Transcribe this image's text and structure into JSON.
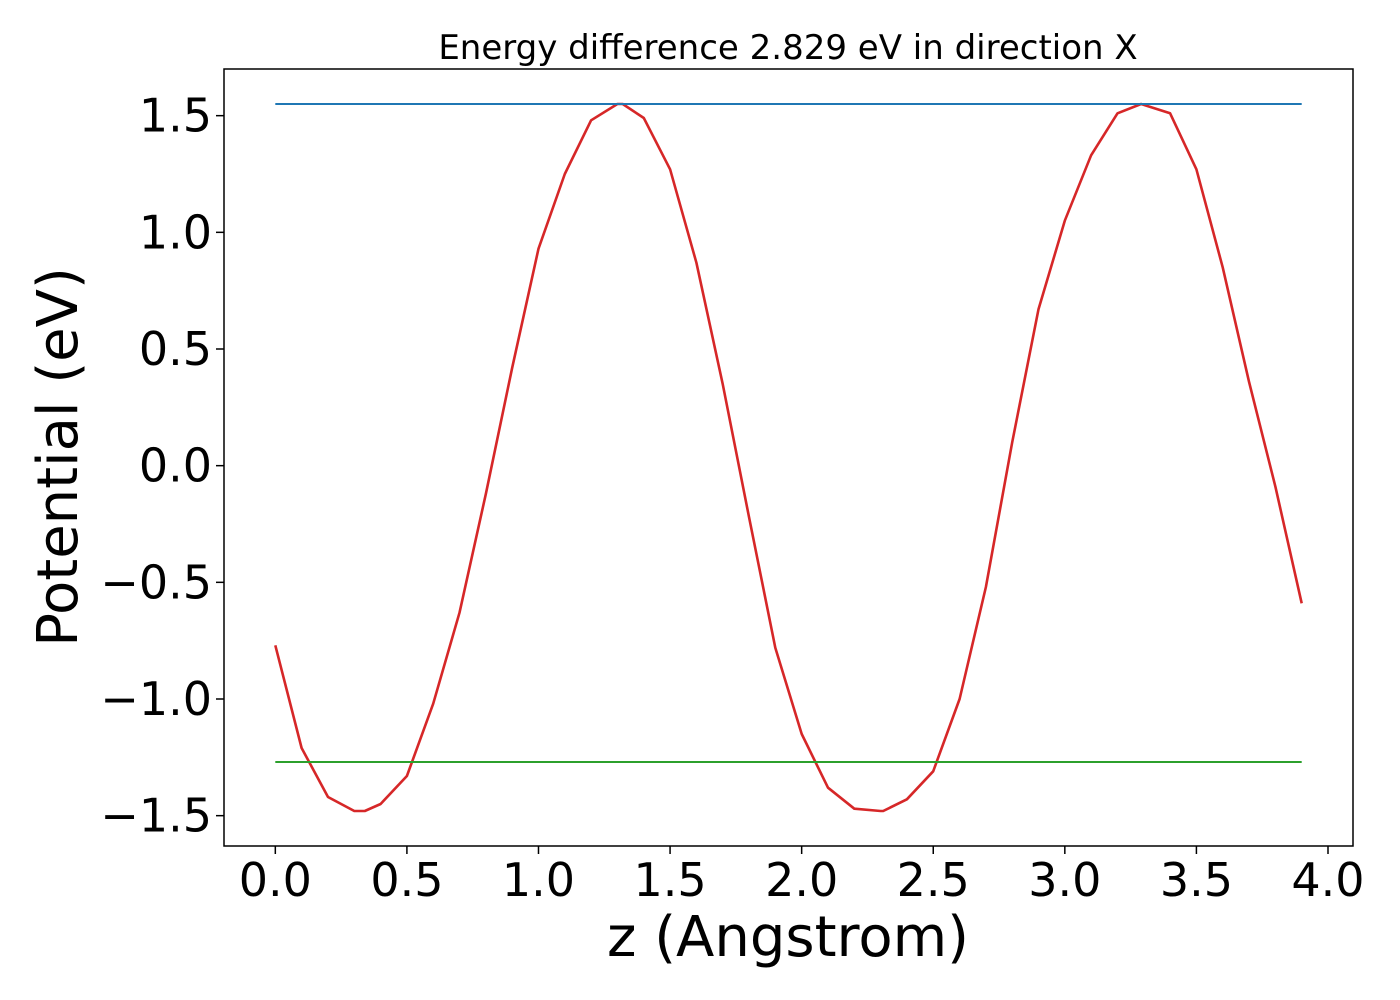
{
  "chart_data": {
    "type": "line",
    "title": "Energy difference 2.829 eV in direction X",
    "xlabel": "z (Angstrom)",
    "ylabel": "Potential (eV)",
    "xlim": [
      -0.195,
      4.095
    ],
    "ylim": [
      -1.63,
      1.7
    ],
    "xticks": [
      0.0,
      0.5,
      1.0,
      1.5,
      2.0,
      2.5,
      3.0,
      3.5,
      4.0
    ],
    "xtick_labels": [
      "0.0",
      "0.5",
      "1.0",
      "1.5",
      "2.0",
      "2.5",
      "3.0",
      "3.5",
      "4.0"
    ],
    "yticks": [
      -1.5,
      -1.0,
      -0.5,
      0.0,
      0.5,
      1.0,
      1.5
    ],
    "ytick_labels": [
      "−1.5",
      "−1.0",
      "−0.5",
      "0.0",
      "0.5",
      "1.0",
      "1.5"
    ],
    "grid": false,
    "legend": "none",
    "series": [
      {
        "color": "#d62728",
        "x": [
          0.0,
          0.1,
          0.2,
          0.3,
          0.34,
          0.4,
          0.5,
          0.6,
          0.7,
          0.8,
          0.9,
          1.0,
          1.1,
          1.2,
          1.3,
          1.32,
          1.4,
          1.5,
          1.6,
          1.7,
          1.8,
          1.9,
          2.0,
          2.1,
          2.2,
          2.3,
          2.31,
          2.4,
          2.5,
          2.6,
          2.7,
          2.8,
          2.9,
          3.0,
          3.1,
          3.2,
          3.29,
          3.4,
          3.5,
          3.6,
          3.7,
          3.8,
          3.9
        ],
        "y": [
          -0.77,
          -1.21,
          -1.42,
          -1.48,
          -1.48,
          -1.45,
          -1.33,
          -1.02,
          -0.63,
          -0.12,
          0.42,
          0.93,
          1.25,
          1.48,
          1.55,
          1.55,
          1.49,
          1.27,
          0.87,
          0.35,
          -0.22,
          -0.78,
          -1.15,
          -1.38,
          -1.47,
          -1.48,
          -1.48,
          -1.43,
          -1.31,
          -1.0,
          -0.52,
          0.1,
          0.67,
          1.05,
          1.33,
          1.51,
          1.55,
          1.51,
          1.27,
          0.85,
          0.36,
          -0.09,
          -0.59
        ]
      },
      {
        "color": "#1f77b4",
        "x": [
          0.0,
          3.9
        ],
        "y": [
          1.55,
          1.55
        ]
      },
      {
        "color": "#2ca02c",
        "x": [
          0.0,
          3.9
        ],
        "y": [
          -1.27,
          -1.27
        ]
      }
    ]
  }
}
